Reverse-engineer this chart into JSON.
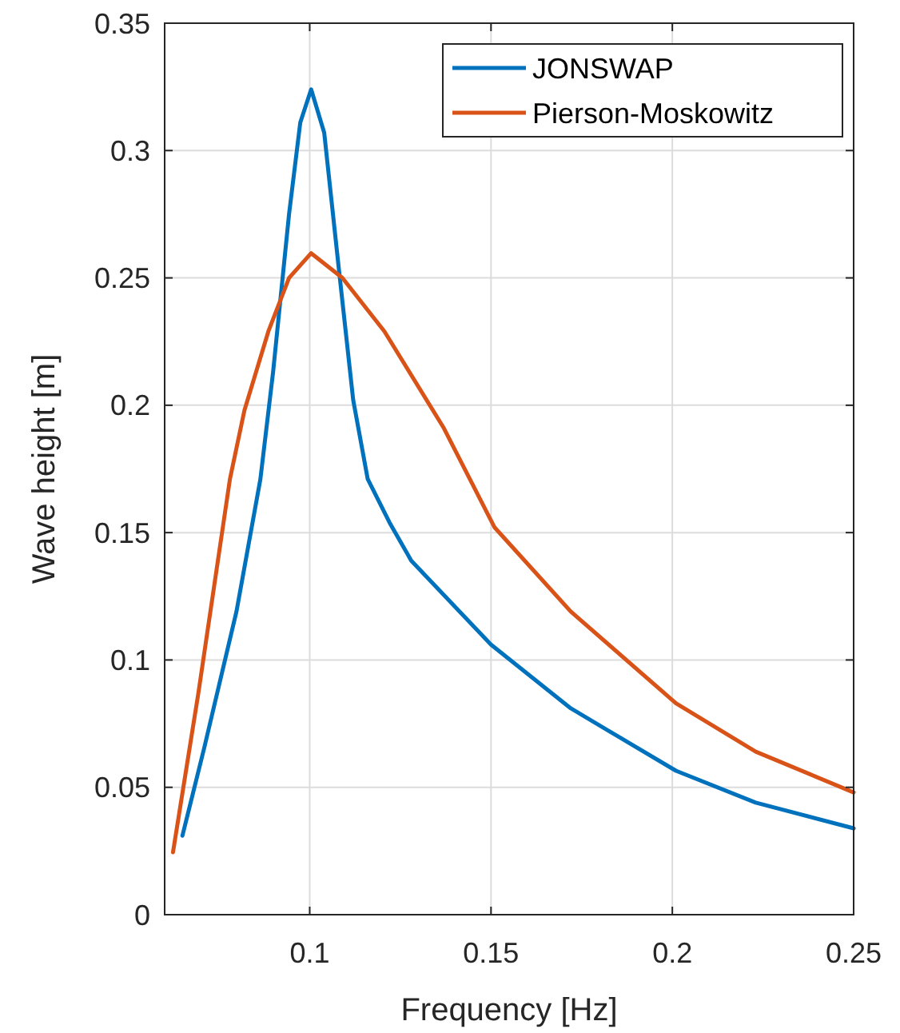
{
  "chart_data": {
    "type": "line",
    "xlabel": "Frequency [Hz]",
    "ylabel": "Wave height [m]",
    "xlim": [
      0.06,
      0.25
    ],
    "xticks": [
      0.1,
      0.15,
      0.2,
      0.25
    ],
    "ylim": [
      0,
      0.35
    ],
    "yticks": [
      0,
      0.05,
      0.1,
      0.15,
      0.2,
      0.25,
      0.3,
      0.35
    ],
    "grid": true,
    "legend": "top right",
    "line_style": "solid",
    "marker": "none",
    "series": [
      {
        "name": "JONSWAP",
        "color": "#0072bd",
        "x": [
          0.0649,
          0.071,
          0.0798,
          0.0864,
          0.0899,
          0.0943,
          0.0974,
          0.1004,
          0.104,
          0.108,
          0.112,
          0.116,
          0.122,
          0.128,
          0.15,
          0.172,
          0.201,
          0.223,
          0.25
        ],
        "values": [
          0.031,
          0.066,
          0.119,
          0.171,
          0.213,
          0.275,
          0.311,
          0.324,
          0.307,
          0.254,
          0.202,
          0.171,
          0.154,
          0.139,
          0.106,
          0.081,
          0.0565,
          0.044,
          0.0339
        ]
      },
      {
        "name": "Pierson-Moskowitz",
        "color": "#d95319",
        "x": [
          0.0623,
          0.0693,
          0.078,
          0.082,
          0.0886,
          0.0943,
          0.1004,
          0.109,
          0.1206,
          0.137,
          0.151,
          0.172,
          0.201,
          0.223,
          0.25
        ],
        "values": [
          0.0245,
          0.087,
          0.171,
          0.198,
          0.229,
          0.25,
          0.2597,
          0.25,
          0.229,
          0.191,
          0.152,
          0.119,
          0.083,
          0.064,
          0.048
        ]
      }
    ]
  }
}
